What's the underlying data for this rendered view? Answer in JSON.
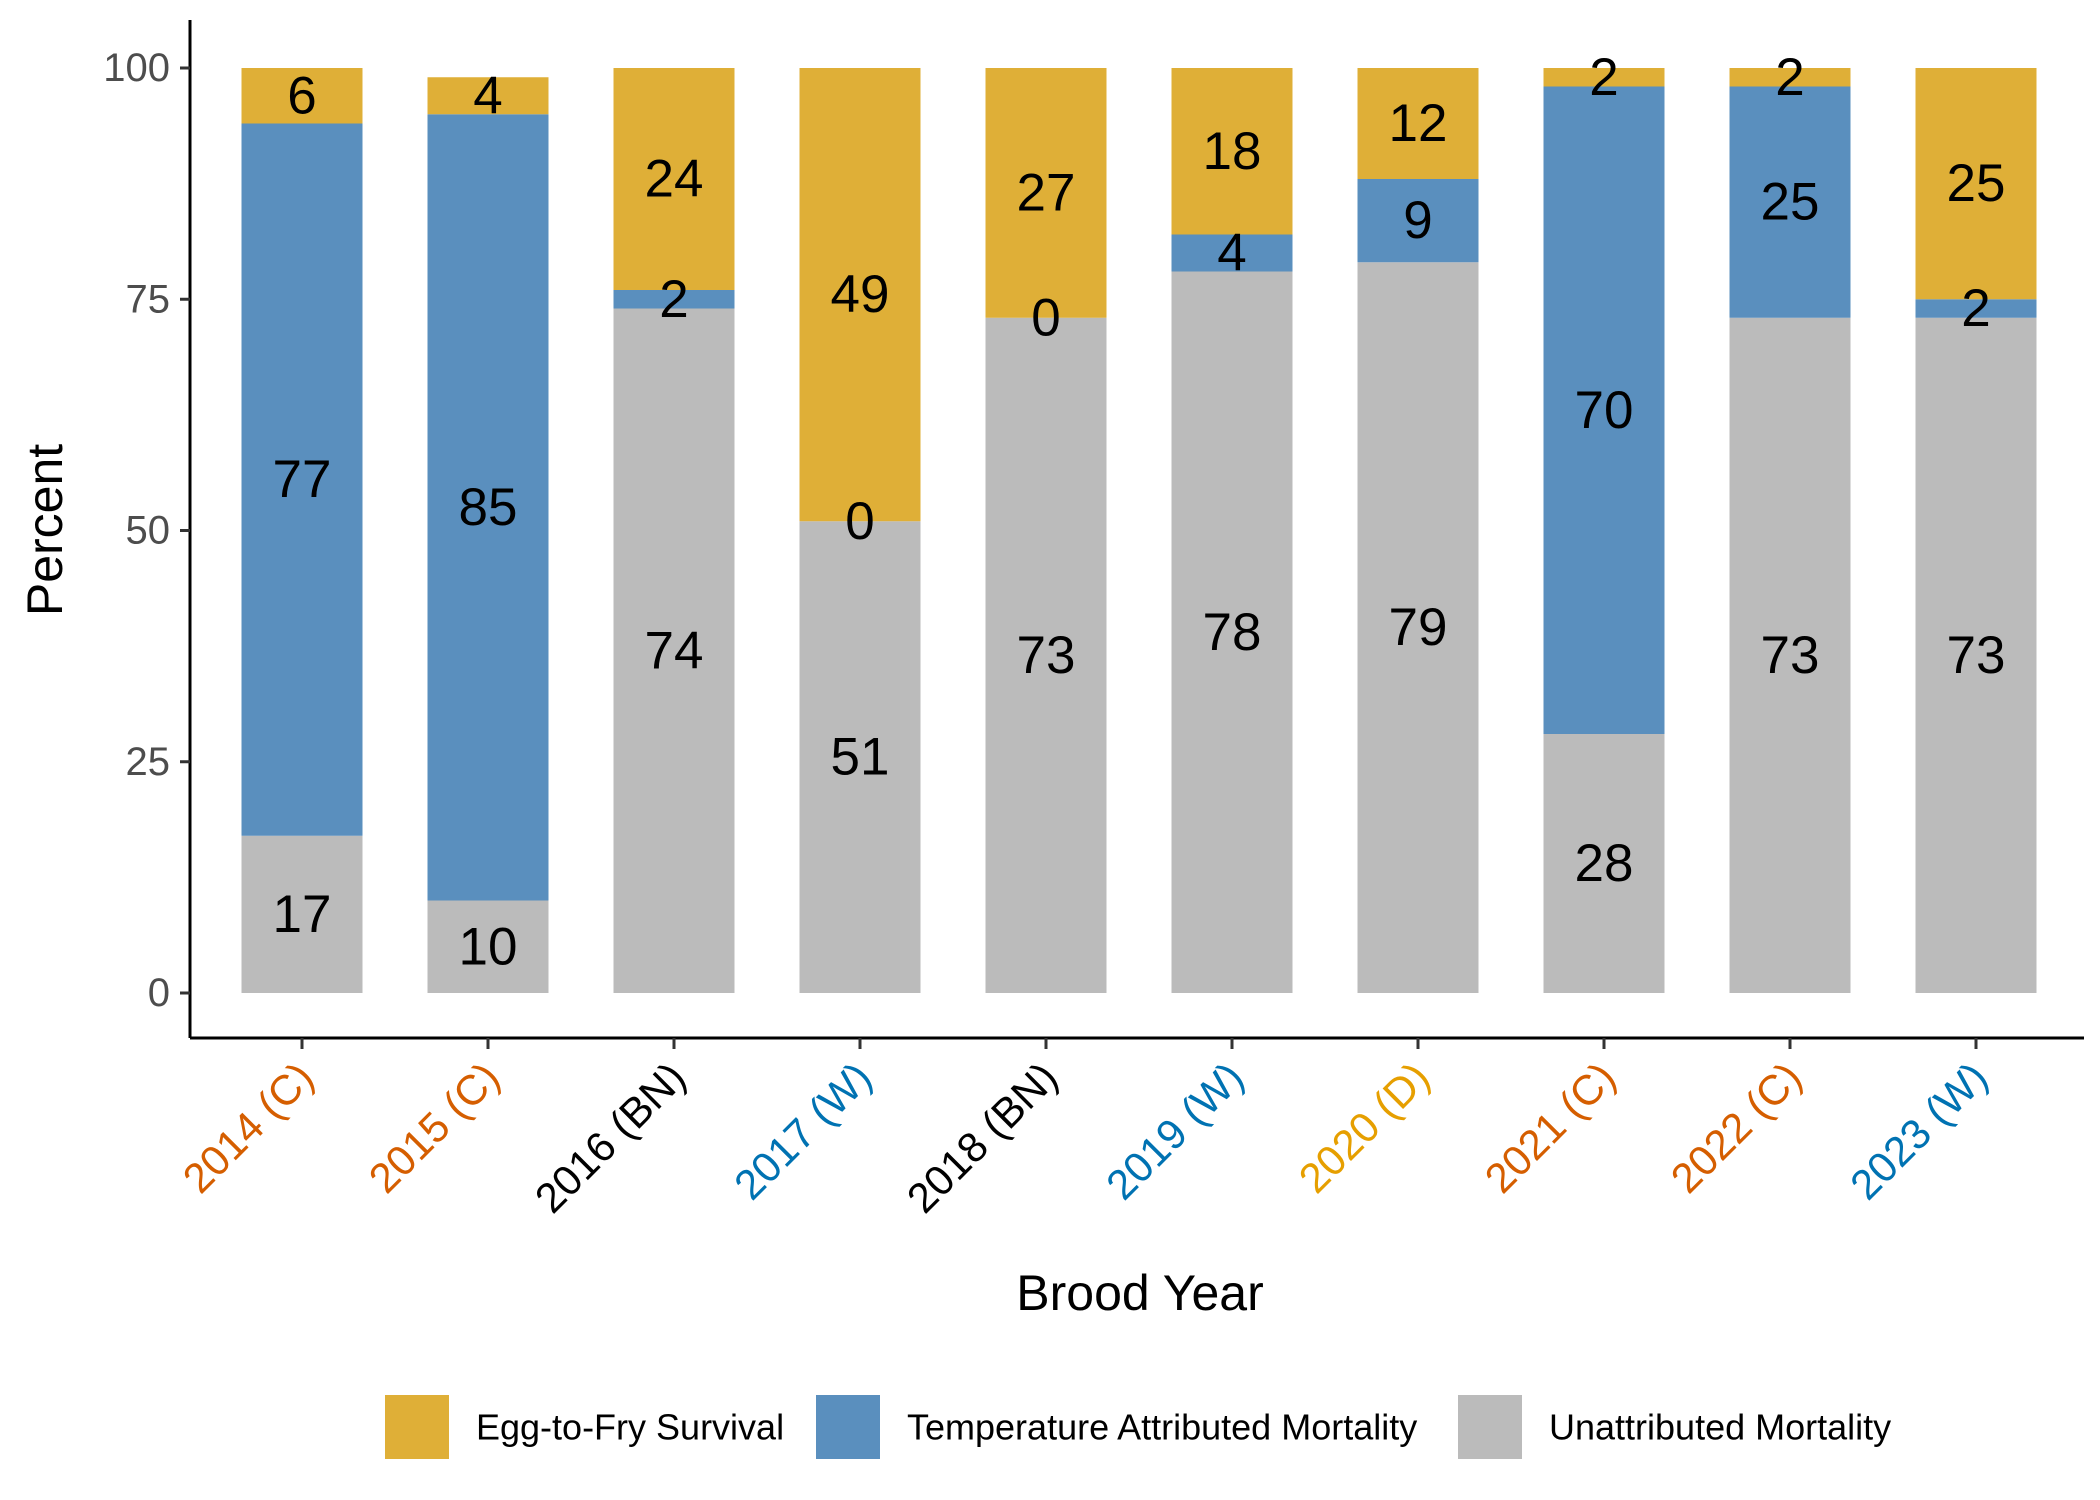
{
  "chart_data": {
    "type": "bar",
    "stacked": true,
    "xlabel": "Brood Year",
    "ylabel": "Percent",
    "ylim": [
      0,
      100
    ],
    "yticks": [
      0,
      25,
      50,
      75,
      100
    ],
    "grid": false,
    "legend_position": "bottom",
    "categories": [
      "2014 (C)",
      "2015 (C)",
      "2016 (BN)",
      "2017 (W)",
      "2018 (BN)",
      "2019 (W)",
      "2020 (D)",
      "2021 (C)",
      "2022 (C)",
      "2023 (W)"
    ],
    "category_colors": [
      "#D55E00",
      "#D55E00",
      "#000000",
      "#0072B2",
      "#000000",
      "#0072B2",
      "#E69F00",
      "#D55E00",
      "#D55E00",
      "#0072B2"
    ],
    "series": [
      {
        "name": "Unattributed Mortality",
        "color": "#BBBBBB",
        "values": [
          17,
          10,
          74,
          51,
          73,
          78,
          79,
          28,
          73,
          73
        ]
      },
      {
        "name": "Temperature Attributed Mortality",
        "color": "#5A8FBE",
        "values": [
          77,
          85,
          2,
          0,
          0,
          4,
          9,
          70,
          25,
          2
        ]
      },
      {
        "name": "Egg-to-Fry Survival",
        "color": "#DFAF37",
        "values": [
          6,
          4,
          24,
          49,
          27,
          18,
          12,
          2,
          2,
          25
        ]
      }
    ],
    "legend_order": [
      "Egg-to-Fry Survival",
      "Temperature Attributed Mortality",
      "Unattributed Mortality"
    ]
  }
}
